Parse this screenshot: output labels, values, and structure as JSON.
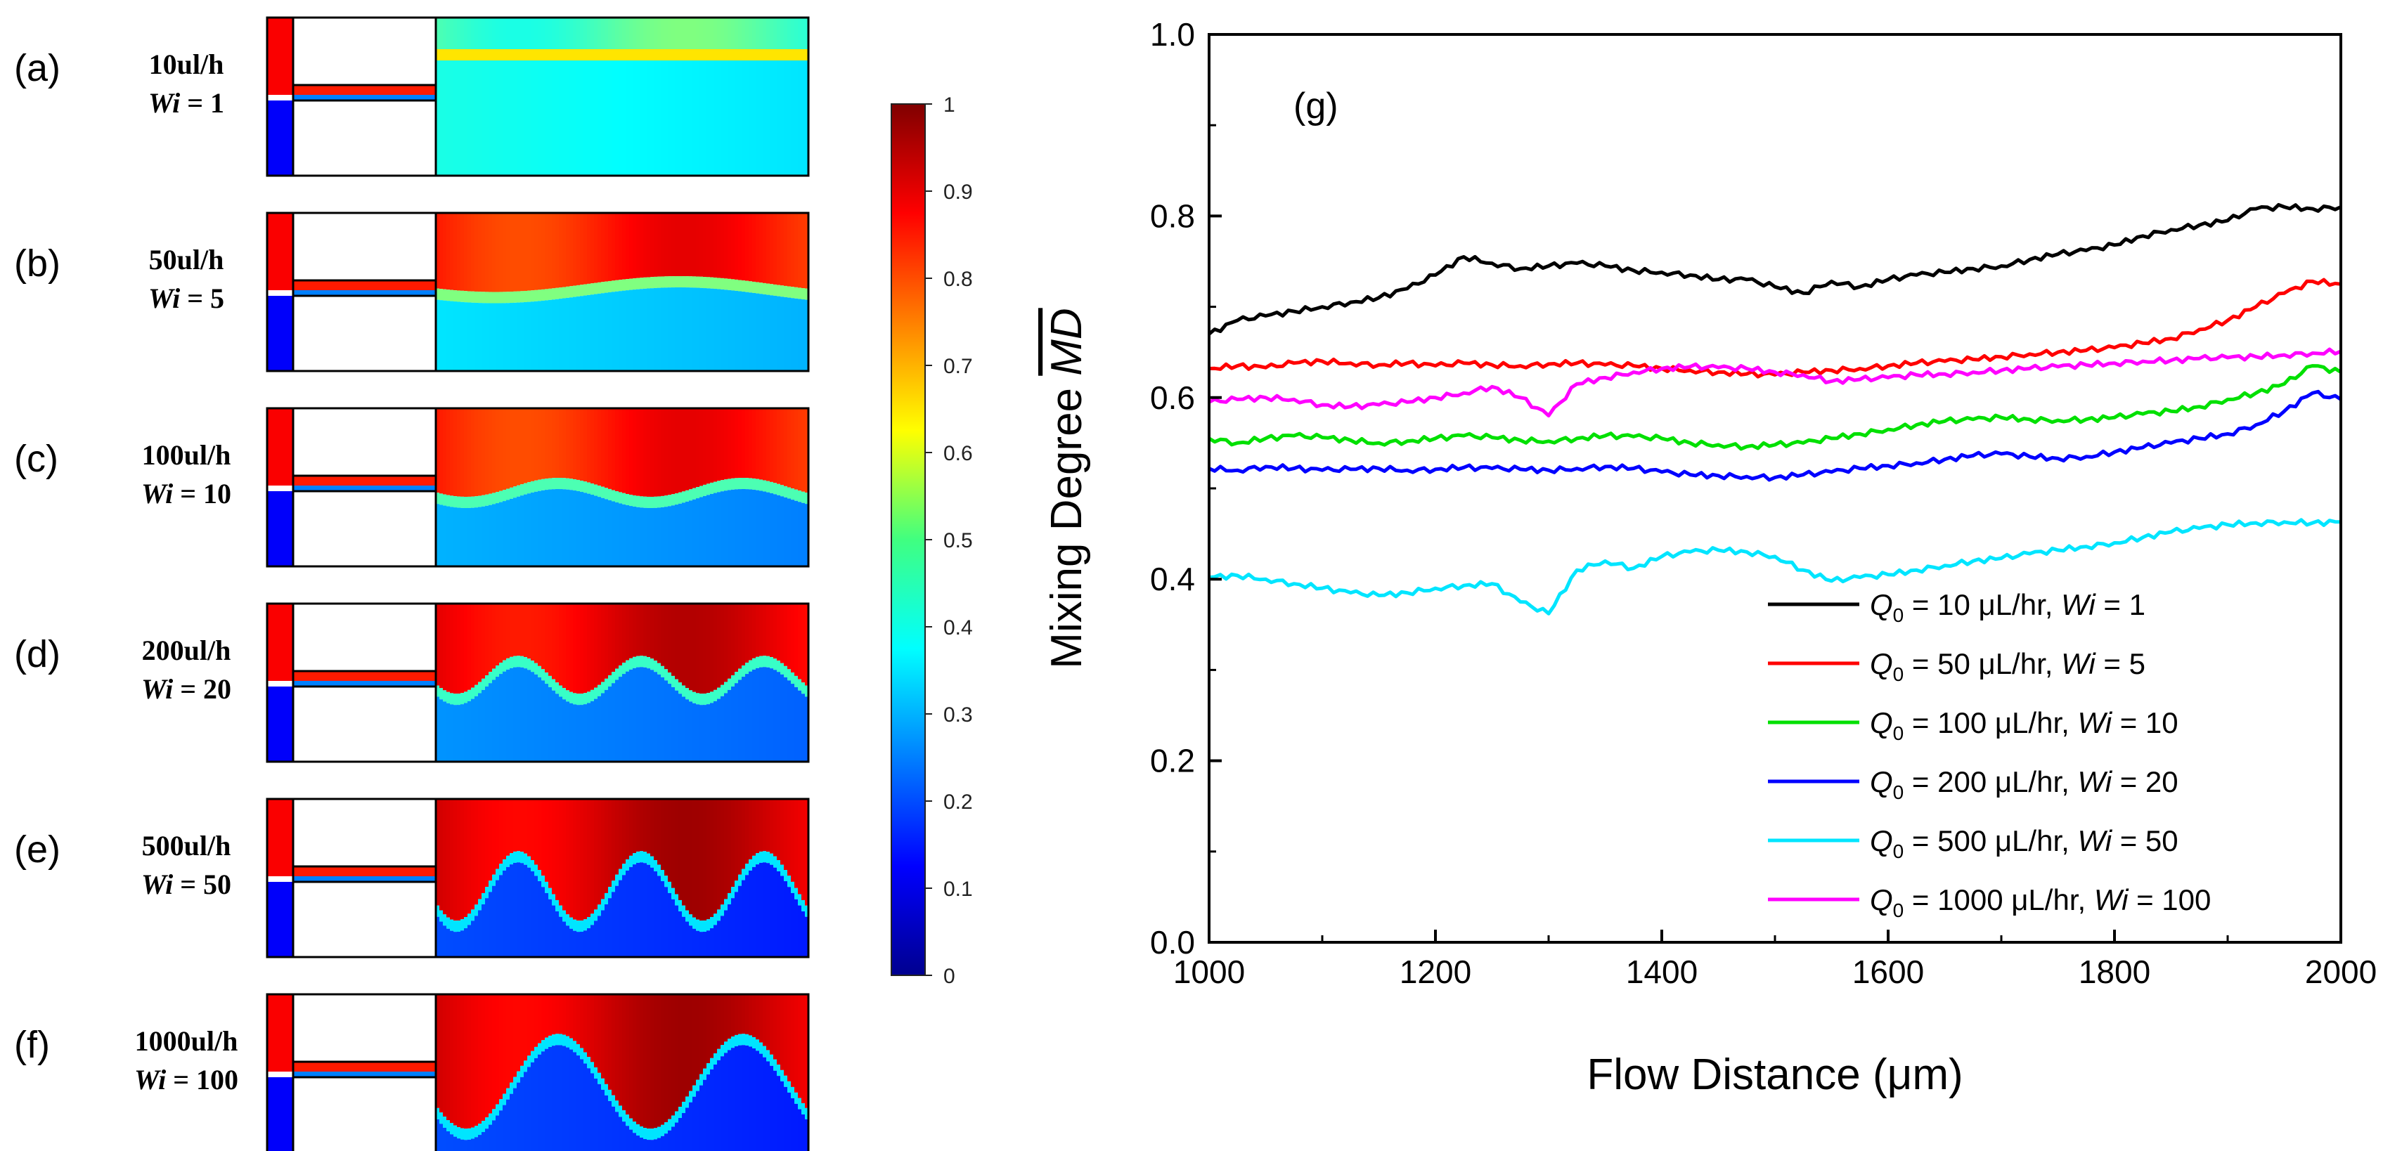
{
  "panels": [
    {
      "letter": "(a)",
      "flow_label": "10ul/h",
      "wi_prefix": "Wi",
      "wi_value": " = 1",
      "field": {
        "red_fraction": 0.2,
        "base_level": 0.45,
        "interface_level": 0.5,
        "wave_amplitude": 0.02,
        "wave_count": 0,
        "outlet_level": 0.35
      }
    },
    {
      "letter": "(b)",
      "flow_label": "50ul/h",
      "wi_prefix": "Wi",
      "wi_value": " = 5",
      "field": {
        "red_fraction": 0.45,
        "base_level": 0.85,
        "interface_level": 0.35,
        "wave_amplitude": 0.05,
        "wave_count": 1,
        "outlet_level": 0.3
      }
    },
    {
      "letter": "(c)",
      "flow_label": "100ul/h",
      "wi_prefix": "Wi",
      "wi_value": " = 10",
      "field": {
        "red_fraction": 0.5,
        "base_level": 0.85,
        "interface_level": 0.3,
        "wave_amplitude": 0.06,
        "wave_count": 2,
        "outlet_level": 0.25
      }
    },
    {
      "letter": "(d)",
      "flow_label": "200ul/h",
      "wi_prefix": "Wi",
      "wi_value": " = 20",
      "field": {
        "red_fraction": 0.45,
        "base_level": 0.9,
        "interface_level": 0.28,
        "wave_amplitude": 0.12,
        "wave_count": 3,
        "outlet_level": 0.22
      }
    },
    {
      "letter": "(e)",
      "flow_label": "500ul/h",
      "wi_prefix": "Wi",
      "wi_value": " = 50",
      "field": {
        "red_fraction": 0.55,
        "base_level": 0.92,
        "interface_level": 0.2,
        "wave_amplitude": 0.22,
        "wave_count": 3,
        "outlet_level": 0.15
      }
    },
    {
      "letter": "(f)",
      "flow_label": "1000ul/h",
      "wi_prefix": "Wi",
      "wi_value": " = 100",
      "field": {
        "red_fraction": 0.55,
        "base_level": 0.92,
        "interface_level": 0.2,
        "wave_amplitude": 0.3,
        "wave_count": 2,
        "outlet_level": 0.15
      }
    }
  ],
  "colorbar": {
    "ticks": [
      "1",
      "0.9",
      "0.8",
      "0.7",
      "0.6",
      "0.5",
      "0.4",
      "0.3",
      "0.2",
      "0.1",
      "0"
    ],
    "range": [
      0,
      1
    ],
    "colormap": "jet"
  },
  "chart_data": {
    "type": "line",
    "panel_label": "(g)",
    "xlabel": "Flow Distance (μm)",
    "ylabel_prefix": "Mixing Degree ",
    "ylabel_symbol": "MD",
    "xlim": [
      1000,
      2000
    ],
    "ylim": [
      0,
      1
    ],
    "x_ticks": [
      "1000",
      "1200",
      "1400",
      "1600",
      "1800",
      "2000"
    ],
    "y_ticks": [
      "0.0",
      "0.2",
      "0.4",
      "0.6",
      "0.8",
      "1.0"
    ],
    "grid": false,
    "legend_position": "bottom-right",
    "x": [
      1000,
      1025,
      1050,
      1075,
      1100,
      1125,
      1150,
      1175,
      1200,
      1225,
      1250,
      1275,
      1300,
      1325,
      1350,
      1375,
      1400,
      1425,
      1450,
      1475,
      1500,
      1525,
      1550,
      1575,
      1600,
      1625,
      1650,
      1675,
      1700,
      1725,
      1750,
      1775,
      1800,
      1825,
      1850,
      1875,
      1900,
      1925,
      1950,
      1975,
      2000
    ],
    "series": [
      {
        "legend_prefix": "Q",
        "legend_sub": "0",
        "legend_mid": " = 10 μL/hr, ",
        "legend_wi": "Wi",
        "legend_wi_value": " = 1",
        "color": "#000000",
        "values": [
          0.67,
          0.685,
          0.69,
          0.695,
          0.7,
          0.705,
          0.71,
          0.72,
          0.735,
          0.755,
          0.748,
          0.742,
          0.745,
          0.748,
          0.745,
          0.74,
          0.738,
          0.735,
          0.73,
          0.73,
          0.722,
          0.715,
          0.728,
          0.722,
          0.73,
          0.735,
          0.738,
          0.742,
          0.745,
          0.752,
          0.758,
          0.762,
          0.768,
          0.778,
          0.785,
          0.79,
          0.795,
          0.808,
          0.81,
          0.808,
          0.81
        ]
      },
      {
        "legend_prefix": "Q",
        "legend_sub": "0",
        "legend_mid": " = 50 μL/hr, ",
        "legend_wi": "Wi",
        "legend_wi_value": " = 5",
        "color": "#ff0000",
        "values": [
          0.632,
          0.635,
          0.633,
          0.638,
          0.64,
          0.638,
          0.636,
          0.638,
          0.635,
          0.638,
          0.636,
          0.635,
          0.637,
          0.638,
          0.636,
          0.635,
          0.632,
          0.63,
          0.628,
          0.626,
          0.625,
          0.628,
          0.63,
          0.632,
          0.635,
          0.638,
          0.64,
          0.642,
          0.645,
          0.648,
          0.65,
          0.652,
          0.655,
          0.66,
          0.665,
          0.675,
          0.685,
          0.7,
          0.715,
          0.728,
          0.725
        ]
      },
      {
        "legend_prefix": "Q",
        "legend_sub": "0",
        "legend_mid": " = 100 μL/hr, ",
        "legend_wi": "Wi",
        "legend_wi_value": " = 10",
        "color": "#00e000",
        "values": [
          0.555,
          0.55,
          0.555,
          0.558,
          0.556,
          0.553,
          0.55,
          0.552,
          0.555,
          0.558,
          0.556,
          0.553,
          0.552,
          0.555,
          0.558,
          0.557,
          0.555,
          0.55,
          0.548,
          0.546,
          0.548,
          0.55,
          0.555,
          0.56,
          0.565,
          0.57,
          0.574,
          0.576,
          0.578,
          0.576,
          0.575,
          0.576,
          0.578,
          0.582,
          0.585,
          0.59,
          0.598,
          0.605,
          0.615,
          0.635,
          0.628
        ]
      },
      {
        "legend_prefix": "Q",
        "legend_sub": "0",
        "legend_mid": " = 200 μL/hr, ",
        "legend_wi": "Wi",
        "legend_wi_value": " = 20",
        "color": "#0000ff",
        "values": [
          0.522,
          0.52,
          0.524,
          0.522,
          0.52,
          0.521,
          0.522,
          0.52,
          0.521,
          0.523,
          0.522,
          0.521,
          0.52,
          0.522,
          0.524,
          0.522,
          0.518,
          0.515,
          0.514,
          0.513,
          0.512,
          0.515,
          0.518,
          0.522,
          0.525,
          0.528,
          0.532,
          0.536,
          0.538,
          0.535,
          0.533,
          0.535,
          0.54,
          0.545,
          0.55,
          0.555,
          0.56,
          0.57,
          0.585,
          0.605,
          0.598
        ]
      },
      {
        "legend_prefix": "Q",
        "legend_sub": "0",
        "legend_mid": " = 500 μL/hr, ",
        "legend_wi": "Wi",
        "legend_wi_value": " = 50",
        "color": "#00e5ff",
        "values": [
          0.402,
          0.404,
          0.4,
          0.395,
          0.39,
          0.385,
          0.382,
          0.385,
          0.39,
          0.393,
          0.395,
          0.375,
          0.362,
          0.41,
          0.42,
          0.412,
          0.425,
          0.43,
          0.432,
          0.43,
          0.425,
          0.41,
          0.398,
          0.402,
          0.405,
          0.41,
          0.415,
          0.42,
          0.423,
          0.428,
          0.432,
          0.436,
          0.44,
          0.446,
          0.452,
          0.456,
          0.46,
          0.462,
          0.463,
          0.462,
          0.463
        ]
      },
      {
        "legend_prefix": "Q",
        "legend_sub": "0",
        "legend_mid": " = 1000 μL/hr, ",
        "legend_wi": "Wi",
        "legend_wi_value": " = 100",
        "color": "#ff00ff",
        "values": [
          0.595,
          0.598,
          0.6,
          0.598,
          0.592,
          0.59,
          0.592,
          0.595,
          0.6,
          0.605,
          0.612,
          0.6,
          0.58,
          0.615,
          0.622,
          0.628,
          0.632,
          0.634,
          0.633,
          0.632,
          0.628,
          0.625,
          0.618,
          0.62,
          0.622,
          0.625,
          0.626,
          0.628,
          0.63,
          0.632,
          0.634,
          0.636,
          0.638,
          0.64,
          0.641,
          0.643,
          0.644,
          0.645,
          0.647,
          0.649,
          0.651
        ]
      }
    ]
  }
}
